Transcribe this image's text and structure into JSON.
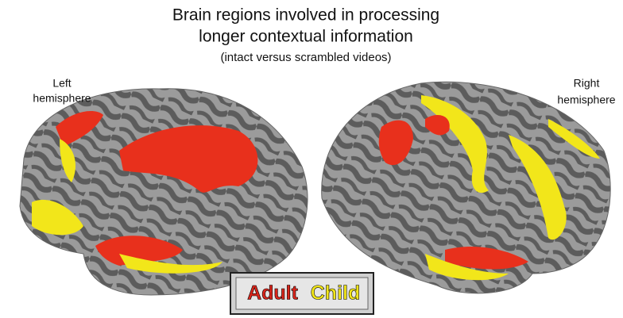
{
  "title": {
    "line1": "Brain regions involved in processing",
    "line2": "longer contextual information",
    "subtitle": "(intact versus scrambled videos)"
  },
  "labels": {
    "left": [
      "Left",
      "hemisphere"
    ],
    "right": [
      "Right",
      "hemisphere"
    ]
  },
  "legend": {
    "items": [
      {
        "label": "Adult",
        "color": "#d9261c"
      },
      {
        "label": "Child",
        "color": "#f2e61a"
      }
    ]
  }
}
